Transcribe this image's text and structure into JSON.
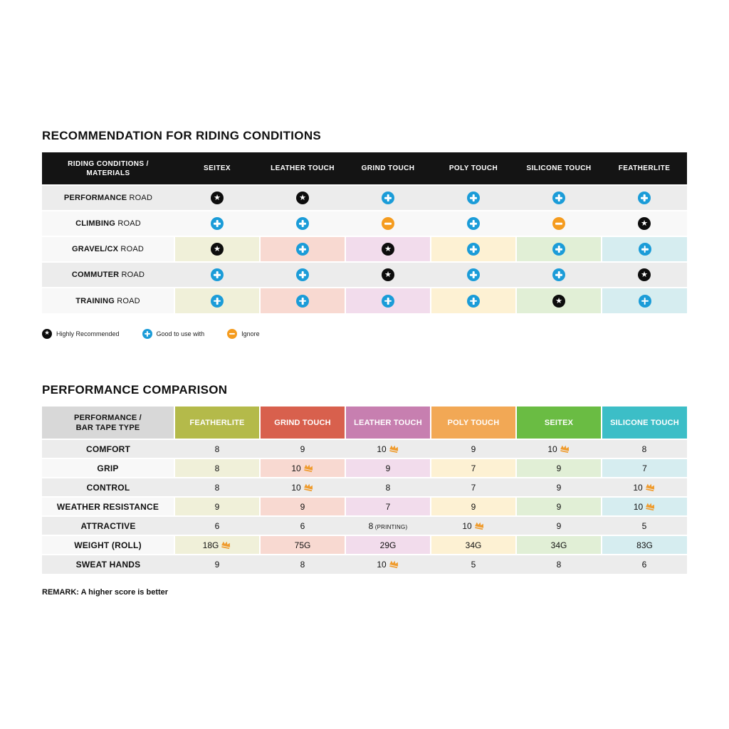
{
  "colors": {
    "blue": "#1b9cd8",
    "orange": "#f59c1f",
    "crown": "#ef9b2d",
    "row_dark": "#ececec",
    "row_light": "#f8f8f8",
    "header_black": "#141414",
    "header_gray": "#d8d8d8",
    "col_headers": [
      "#b4ba4a",
      "#d8604d",
      "#c77fb0",
      "#f2a855",
      "#6abc43",
      "#3cbec7"
    ],
    "col_pastels": [
      "#f0f0d9",
      "#f8d9d1",
      "#f2dcec",
      "#fdf1d3",
      "#e1efd6",
      "#d6edf0"
    ]
  },
  "section1": {
    "title": "RECOMMENDATION FOR RIDING CONDITIONS",
    "header_line1": "RIDING CONDITIONS /",
    "header_line2": "MATERIALS",
    "columns": [
      "SEITEX",
      "LEATHER TOUCH",
      "GRIND TOUCH",
      "POLY TOUCH",
      "SILICONE TOUCH",
      "FEATHERLITE"
    ],
    "rows": [
      {
        "bold": "PERFORMANCE",
        "rest": "ROAD",
        "shade": "dark",
        "colored": false,
        "marks": [
          "star",
          "star",
          "plus",
          "plus",
          "plus",
          "plus"
        ]
      },
      {
        "bold": "CLIMBING",
        "rest": "ROAD",
        "shade": "light",
        "colored": false,
        "marks": [
          "plus",
          "plus",
          "ignore",
          "plus",
          "ignore",
          "star"
        ]
      },
      {
        "bold": "GRAVEL/CX",
        "rest": "ROAD",
        "shade": "light",
        "colored": true,
        "marks": [
          "star",
          "plus",
          "star",
          "plus",
          "plus",
          "plus"
        ]
      },
      {
        "bold": "COMMUTER",
        "rest": "ROAD",
        "shade": "dark",
        "colored": false,
        "marks": [
          "plus",
          "plus",
          "star",
          "plus",
          "plus",
          "star"
        ]
      },
      {
        "bold": "TRAINING",
        "rest": "ROAD",
        "shade": "light",
        "colored": true,
        "marks": [
          "plus",
          "plus",
          "plus",
          "plus",
          "star",
          "plus"
        ]
      }
    ],
    "legend": [
      {
        "icon": "star",
        "label": "Highly Recommended"
      },
      {
        "icon": "plus",
        "label": "Good to use with"
      },
      {
        "icon": "ignore",
        "label": "Ignore"
      }
    ]
  },
  "section2": {
    "title": "PERFORMANCE COMPARISON",
    "header_line1": "PERFORMANCE /",
    "header_line2": "BAR TAPE TYPE",
    "columns": [
      "FEATHERLITE",
      "GRIND TOUCH",
      "LEATHER TOUCH",
      "POLY TOUCH",
      "SEITEX",
      "SILICONE TOUCH"
    ],
    "rows": [
      {
        "label": "COMFORT",
        "shade": "dark",
        "colored": false,
        "cells": [
          {
            "v": "8"
          },
          {
            "v": "9"
          },
          {
            "v": "10",
            "crown": true
          },
          {
            "v": "9"
          },
          {
            "v": "10",
            "crown": true
          },
          {
            "v": "8"
          }
        ]
      },
      {
        "label": "GRIP",
        "shade": "light",
        "colored": true,
        "cells": [
          {
            "v": "8"
          },
          {
            "v": "10",
            "crown": true
          },
          {
            "v": "9"
          },
          {
            "v": "7"
          },
          {
            "v": "9"
          },
          {
            "v": "7"
          }
        ]
      },
      {
        "label": "CONTROL",
        "shade": "dark",
        "colored": false,
        "cells": [
          {
            "v": "8"
          },
          {
            "v": "10",
            "crown": true
          },
          {
            "v": "8"
          },
          {
            "v": "7"
          },
          {
            "v": "9"
          },
          {
            "v": "10",
            "crown": true
          }
        ]
      },
      {
        "label": "WEATHER RESISTANCE",
        "shade": "light",
        "colored": true,
        "cells": [
          {
            "v": "9"
          },
          {
            "v": "9"
          },
          {
            "v": "7"
          },
          {
            "v": "9"
          },
          {
            "v": "9"
          },
          {
            "v": "10",
            "crown": true
          }
        ]
      },
      {
        "label": "ATTRACTIVE",
        "shade": "dark",
        "colored": false,
        "cells": [
          {
            "v": "6"
          },
          {
            "v": "6"
          },
          {
            "v": "8",
            "suffix": "(PRINTING)"
          },
          {
            "v": "10",
            "crown": true
          },
          {
            "v": "9"
          },
          {
            "v": "5"
          }
        ]
      },
      {
        "label": "WEIGHT (ROLL)",
        "shade": "light",
        "colored": true,
        "cells": [
          {
            "v": "18G",
            "crown": true
          },
          {
            "v": "75G"
          },
          {
            "v": "29G"
          },
          {
            "v": "34G"
          },
          {
            "v": "34G"
          },
          {
            "v": "83G"
          }
        ]
      },
      {
        "label": "SWEAT HANDS",
        "shade": "dark",
        "colored": false,
        "cells": [
          {
            "v": "9"
          },
          {
            "v": "8"
          },
          {
            "v": "10",
            "crown": true
          },
          {
            "v": "5"
          },
          {
            "v": "8"
          },
          {
            "v": "6"
          }
        ]
      }
    ],
    "remark": "REMARK: A higher score is better"
  },
  "chart_data": [
    {
      "type": "table",
      "title": "RECOMMENDATION FOR RIDING CONDITIONS",
      "columns": [
        "RIDING CONDITIONS / MATERIALS",
        "SEITEX",
        "LEATHER TOUCH",
        "GRIND TOUCH",
        "POLY TOUCH",
        "SILICONE TOUCH",
        "FEATHERLITE"
      ],
      "rows": [
        [
          "PERFORMANCE ROAD",
          "highly-recommended",
          "highly-recommended",
          "good-to-use",
          "good-to-use",
          "good-to-use",
          "good-to-use"
        ],
        [
          "CLIMBING ROAD",
          "good-to-use",
          "good-to-use",
          "ignore",
          "good-to-use",
          "ignore",
          "highly-recommended"
        ],
        [
          "GRAVEL/CX ROAD",
          "highly-recommended",
          "good-to-use",
          "highly-recommended",
          "good-to-use",
          "good-to-use",
          "good-to-use"
        ],
        [
          "COMMUTER ROAD",
          "good-to-use",
          "good-to-use",
          "highly-recommended",
          "good-to-use",
          "good-to-use",
          "highly-recommended"
        ],
        [
          "TRAINING ROAD",
          "good-to-use",
          "good-to-use",
          "good-to-use",
          "good-to-use",
          "highly-recommended",
          "good-to-use"
        ]
      ],
      "legend": {
        "star": "Highly Recommended",
        "plus": "Good to use with",
        "minus": "Ignore"
      }
    },
    {
      "type": "table",
      "title": "PERFORMANCE COMPARISON",
      "columns": [
        "PERFORMANCE / BAR TAPE TYPE",
        "FEATHERLITE",
        "GRIND TOUCH",
        "LEATHER TOUCH",
        "POLY TOUCH",
        "SEITEX",
        "SILICONE TOUCH"
      ],
      "rows": [
        [
          "COMFORT",
          "8",
          "9",
          "10 (best)",
          "9",
          "10 (best)",
          "8"
        ],
        [
          "GRIP",
          "8",
          "10 (best)",
          "9",
          "7",
          "9",
          "7"
        ],
        [
          "CONTROL",
          "8",
          "10 (best)",
          "8",
          "7",
          "9",
          "10 (best)"
        ],
        [
          "WEATHER RESISTANCE",
          "9",
          "9",
          "7",
          "9",
          "9",
          "10 (best)"
        ],
        [
          "ATTRACTIVE",
          "6",
          "6",
          "8 (PRINTING)",
          "10 (best)",
          "9",
          "5"
        ],
        [
          "WEIGHT (ROLL)",
          "18G (best)",
          "75G",
          "29G",
          "34G",
          "34G",
          "83G"
        ],
        [
          "SWEAT HANDS",
          "9",
          "8",
          "10 (best)",
          "5",
          "8",
          "6"
        ]
      ],
      "note": "REMARK: A higher score is better"
    }
  ]
}
